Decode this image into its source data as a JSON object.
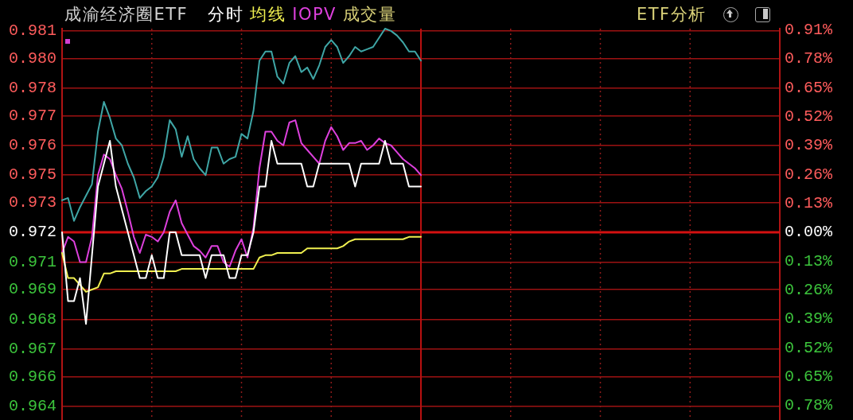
{
  "chart_data": {
    "type": "line",
    "title": "成渝经济圈ETF",
    "subtitle": "分时",
    "annotations": [
      "成交量",
      "ETF分析"
    ],
    "categories": [
      null,
      null,
      null,
      null,
      null,
      null,
      null,
      null,
      null,
      null,
      null,
      null,
      null,
      null,
      null,
      null,
      null,
      null,
      null,
      null,
      null,
      null,
      null,
      null,
      null,
      null,
      null,
      null,
      null,
      null,
      null,
      null,
      null,
      null,
      null,
      null,
      null,
      null,
      null,
      null,
      null,
      null,
      null,
      null,
      null,
      null,
      null,
      null,
      null,
      null,
      null,
      null,
      null,
      null,
      null,
      null,
      null,
      null,
      null,
      null,
      null,
      null,
      null,
      null,
      null,
      null,
      null,
      null,
      null,
      null,
      null,
      null,
      null,
      null,
      null,
      null,
      null,
      null,
      null,
      null,
      null,
      null,
      null,
      null,
      null,
      null,
      null,
      null,
      null,
      null,
      null,
      null,
      null,
      null,
      null,
      null,
      null,
      null,
      null,
      null,
      null,
      null,
      null,
      null,
      null,
      null,
      null,
      null,
      null,
      null,
      null,
      null,
      null,
      null,
      null,
      null,
      null,
      null,
      null,
      null,
      null
    ],
    "series": [
      {
        "color": "#ffffff",
        "values": [
          0.972,
          0.969,
          0.969,
          0.97,
          0.968,
          0.971,
          0.974,
          0.975,
          0.976,
          0.974,
          0.973,
          0.972,
          0.971,
          0.97,
          0.97,
          0.971,
          0.97,
          0.97,
          0.972,
          0.972,
          0.971,
          0.971,
          0.971,
          0.971,
          0.97,
          0.971,
          0.971,
          0.971,
          0.97,
          0.97,
          0.971,
          0.971,
          0.972,
          0.974,
          0.974,
          0.976,
          0.975,
          0.975,
          0.975,
          0.975,
          0.975,
          0.974,
          0.974,
          0.975,
          0.975,
          0.975,
          0.975,
          0.975,
          0.975,
          0.974,
          0.975,
          0.975,
          0.975,
          0.975,
          0.976,
          0.975,
          0.975,
          0.975,
          0.974,
          0.974,
          0.974,
          null,
          null,
          null,
          null,
          null,
          null,
          null,
          null,
          null,
          null,
          null,
          null,
          null,
          null,
          null,
          null,
          null,
          null,
          null,
          null,
          null,
          null,
          null,
          null,
          null,
          null,
          null,
          null,
          null,
          null,
          null,
          null,
          null,
          null,
          null,
          null,
          null,
          null,
          null,
          null,
          null,
          null,
          null,
          null,
          null,
          null,
          null,
          null,
          null,
          null,
          null,
          null,
          null,
          null,
          null,
          null,
          null,
          null,
          null,
          null
        ]
      },
      {
        "name": "均线",
        "color": "#f0f050",
        "values": [
          0.9711,
          0.97,
          0.97,
          0.9697,
          0.9694,
          0.9695,
          0.9696,
          0.9702,
          0.9702,
          0.9703,
          0.9703,
          0.9703,
          0.9703,
          0.9703,
          0.9703,
          0.9703,
          0.9703,
          0.9703,
          0.9703,
          0.9703,
          0.9704,
          0.9704,
          0.9704,
          0.9704,
          0.9704,
          0.9704,
          0.9704,
          0.9704,
          0.9704,
          0.9704,
          0.9704,
          0.9704,
          0.9704,
          0.9709,
          0.971,
          0.971,
          0.9711,
          0.9711,
          0.9711,
          0.9711,
          0.9711,
          0.9713,
          0.9713,
          0.9713,
          0.9713,
          0.9713,
          0.9713,
          0.9714,
          0.9716,
          0.9717,
          0.9717,
          0.9717,
          0.9717,
          0.9717,
          0.9717,
          0.9717,
          0.9717,
          0.9717,
          0.9718,
          0.9718,
          0.9718,
          null,
          null,
          null,
          null,
          null,
          null,
          null,
          null,
          null,
          null,
          null,
          null,
          null,
          null,
          null,
          null,
          null,
          null,
          null,
          null,
          null,
          null,
          null,
          null,
          null,
          null,
          null,
          null,
          null,
          null,
          null,
          null,
          null,
          null,
          null,
          null,
          null,
          null,
          null,
          null,
          null,
          null,
          null,
          null,
          null,
          null,
          null,
          null,
          null,
          null,
          null,
          null,
          null,
          null,
          null,
          null,
          null,
          null,
          null,
          null
        ]
      },
      {
        "name": "IOPV",
        "color": "#dd40dd",
        "values": [
          0.9711,
          0.9718,
          0.9716,
          0.9707,
          0.9707,
          0.9718,
          0.9745,
          0.9754,
          0.9752,
          0.9745,
          0.9739,
          0.9729,
          0.9718,
          0.9711,
          0.9719,
          0.9718,
          0.9716,
          0.972,
          0.9729,
          0.9734,
          0.9724,
          0.9719,
          0.9714,
          0.9712,
          0.9709,
          0.9714,
          0.9714,
          0.9707,
          0.9705,
          0.9712,
          0.9717,
          0.9709,
          0.9722,
          0.9748,
          0.9764,
          0.9764,
          0.976,
          0.9758,
          0.9768,
          0.9769,
          0.9759,
          0.9756,
          0.9753,
          0.975,
          0.976,
          0.9766,
          0.9762,
          0.9756,
          0.9759,
          0.9759,
          0.976,
          0.9756,
          0.9758,
          0.9761,
          0.9759,
          0.9758,
          0.9755,
          0.9752,
          0.975,
          0.9748,
          0.9745,
          null,
          null,
          null,
          null,
          null,
          null,
          null,
          null,
          null,
          null,
          null,
          null,
          null,
          null,
          null,
          null,
          null,
          null,
          null,
          null,
          null,
          null,
          null,
          null,
          null,
          null,
          null,
          null,
          null,
          null,
          null,
          null,
          null,
          null,
          null,
          null,
          null,
          null,
          null,
          null,
          null,
          null,
          null,
          null,
          null,
          null,
          null,
          null,
          null,
          null,
          null,
          null,
          null,
          null,
          null,
          null,
          null,
          null,
          null,
          null
        ]
      },
      {
        "color": "#3fa6a6",
        "values": [
          0.9734,
          0.9735,
          0.9725,
          0.9731,
          0.9736,
          0.9741,
          0.9764,
          0.9777,
          0.977,
          0.9761,
          0.9758,
          0.975,
          0.9744,
          0.9735,
          0.9738,
          0.974,
          0.9744,
          0.9753,
          0.9769,
          0.9765,
          0.9753,
          0.9762,
          0.9752,
          0.9748,
          0.9745,
          0.9757,
          0.9757,
          0.975,
          0.9752,
          0.9753,
          0.9763,
          0.9761,
          0.9773,
          0.9795,
          0.9799,
          0.9799,
          0.9788,
          0.9785,
          0.9794,
          0.9797,
          0.979,
          0.9792,
          0.9787,
          0.9793,
          0.9801,
          0.9804,
          0.9801,
          0.9794,
          0.9797,
          0.9801,
          0.9799,
          0.98,
          0.9801,
          0.9805,
          0.9809,
          0.9808,
          0.9806,
          0.9803,
          0.9799,
          0.9799,
          0.9795,
          null,
          null,
          null,
          null,
          null,
          null,
          null,
          null,
          null,
          null,
          null,
          null,
          null,
          null,
          null,
          null,
          null,
          null,
          null,
          null,
          null,
          null,
          null,
          null,
          null,
          null,
          null,
          null,
          null,
          null,
          null,
          null,
          null,
          null,
          null,
          null,
          null,
          null,
          null,
          null,
          null,
          null,
          null,
          null,
          null,
          null,
          null,
          null,
          null,
          null,
          null,
          null,
          null,
          null,
          null,
          null,
          null,
          null,
          null,
          null
        ]
      }
    ],
    "ylim": [
      0.9638,
      0.9809
    ],
    "yticks": [
      {
        "value": 0.9644,
        "label": "0.964"
      },
      {
        "value": 0.9657,
        "label": "0.966"
      },
      {
        "value": 0.9669,
        "label": "0.967"
      },
      {
        "value": 0.9682,
        "label": "0.968"
      },
      {
        "value": 0.9695,
        "label": "0.969"
      },
      {
        "value": 0.9707,
        "label": "0.971"
      },
      0.972,
      {
        "value": 0.9733,
        "label": "0.973"
      },
      {
        "value": 0.9745,
        "label": "0.975"
      },
      {
        "value": 0.9758,
        "label": "0.976"
      },
      {
        "value": 0.9771,
        "label": "0.977"
      },
      {
        "value": 0.9783,
        "label": "0.978"
      },
      {
        "value": 0.9796,
        "label": "0.980"
      },
      {
        "value": 0.9808,
        "label": "0.981"
      }
    ],
    "y2lim": [
      -0.844,
      0.916
    ],
    "y2ticks": [
      {
        "value": -0.78,
        "label": "0.78%"
      },
      {
        "value": -0.65,
        "label": "0.65%"
      },
      {
        "value": -0.52,
        "label": "0.52%"
      },
      {
        "value": -0.39,
        "label": "0.39%"
      },
      {
        "value": -0.26,
        "label": "0.26%"
      },
      {
        "value": -0.13,
        "label": "0.13%"
      },
      {
        "value": 0,
        "label": "0.00%"
      },
      {
        "value": 0.13,
        "label": "0.13%"
      },
      {
        "value": 0.26,
        "label": "0.26%"
      },
      {
        "value": 0.39,
        "label": "0.39%"
      },
      {
        "value": 0.52,
        "label": "0.52%"
      },
      {
        "value": 0.65,
        "label": "0.65%"
      },
      {
        "value": 0.78,
        "label": "0.78%"
      },
      {
        "value": 0.91,
        "label": "0.91%"
      }
    ],
    "ref_lines": [
      {
        "axis": "y",
        "value": 0.972,
        "color": "#d41010"
      }
    ],
    "grid": true,
    "legend": "top left",
    "tick_labels": "y"
  }
}
